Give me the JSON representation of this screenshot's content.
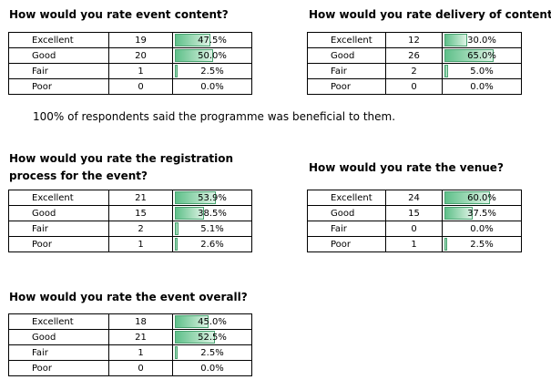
{
  "note": "100% of respondents said the programme was beneficial to them.",
  "surveys": [
    {
      "title_lines": [
        "How would you rate event content?"
      ],
      "rows": [
        {
          "label": "Excellent",
          "count": "19",
          "pct": "47.5%",
          "fraction": 0.475
        },
        {
          "label": "Good",
          "count": "20",
          "pct": "50.0%",
          "fraction": 0.5
        },
        {
          "label": "Fair",
          "count": "1",
          "pct": "2.5%",
          "fraction": 0.025
        },
        {
          "label": "Poor",
          "count": "0",
          "pct": "0.0%",
          "fraction": 0.0
        }
      ]
    },
    {
      "title_lines": [
        "How would you rate delivery of content?"
      ],
      "rows": [
        {
          "label": "Excellent",
          "count": "12",
          "pct": "30.0%",
          "fraction": 0.3
        },
        {
          "label": "Good",
          "count": "26",
          "pct": "65.0%",
          "fraction": 0.65
        },
        {
          "label": "Fair",
          "count": "2",
          "pct": "5.0%",
          "fraction": 0.05
        },
        {
          "label": "Poor",
          "count": "0",
          "pct": "0.0%",
          "fraction": 0.0
        }
      ]
    },
    {
      "title_lines": [
        "How would you rate the registration",
        "process for the event?"
      ],
      "rows": [
        {
          "label": "Excellent",
          "count": "21",
          "pct": "53.9%",
          "fraction": 0.539
        },
        {
          "label": "Good",
          "count": "15",
          "pct": "38.5%",
          "fraction": 0.385
        },
        {
          "label": "Fair",
          "count": "2",
          "pct": "5.1%",
          "fraction": 0.051
        },
        {
          "label": "Poor",
          "count": "1",
          "pct": "2.6%",
          "fraction": 0.026
        }
      ]
    },
    {
      "title_lines": [
        "How would you rate the venue?"
      ],
      "rows": [
        {
          "label": "Excellent",
          "count": "24",
          "pct": "60.0%",
          "fraction": 0.6
        },
        {
          "label": "Good",
          "count": "15",
          "pct": "37.5%",
          "fraction": 0.375
        },
        {
          "label": "Fair",
          "count": "0",
          "pct": "0.0%",
          "fraction": 0.0
        },
        {
          "label": "Poor",
          "count": "1",
          "pct": "2.5%",
          "fraction": 0.025
        }
      ]
    },
    {
      "title_lines": [
        "How would you rate the event overall?"
      ],
      "rows": [
        {
          "label": "Excellent",
          "count": "18",
          "pct": "45.0%",
          "fraction": 0.45
        },
        {
          "label": "Good",
          "count": "21",
          "pct": "52.5%",
          "fraction": 0.525
        },
        {
          "label": "Fair",
          "count": "1",
          "pct": "2.5%",
          "fraction": 0.025
        },
        {
          "label": "Poor",
          "count": "0",
          "pct": "0.0%",
          "fraction": 0.0
        }
      ]
    }
  ]
}
